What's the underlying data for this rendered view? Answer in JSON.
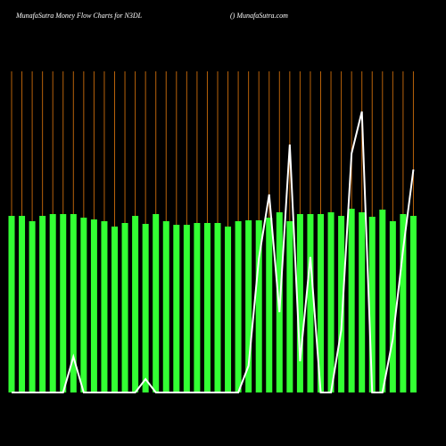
{
  "chart_data": {
    "type": "bar",
    "title": "MunafaSutra  Money Flow  Charts for N3DL",
    "subtitle": "() MunafaSutra.com",
    "categories": [
      null,
      null,
      null,
      null,
      null,
      null,
      null,
      null,
      null,
      null,
      null,
      null,
      null,
      null,
      null,
      null,
      null,
      null,
      null,
      null,
      null,
      null,
      null,
      null,
      null,
      null,
      null,
      null,
      null,
      null,
      null,
      null,
      null,
      null,
      null,
      null,
      null,
      null,
      null,
      null
    ],
    "series": [
      {
        "type": "bar",
        "color": "#33ff33",
        "values": [
          198,
          198,
          192,
          198,
          200,
          200,
          200,
          196,
          194,
          192,
          186,
          190,
          198,
          189,
          200,
          192,
          188,
          188,
          190,
          190,
          190,
          186,
          192,
          193,
          193,
          196,
          202,
          192,
          200,
          200,
          200,
          202,
          198,
          206,
          202,
          197,
          205,
          192,
          200,
          198
        ]
      },
      {
        "type": "line",
        "color": "#ffffff",
        "values": [
          0,
          0,
          0,
          0,
          0,
          0,
          40,
          0,
          0,
          0,
          0,
          0,
          0,
          15,
          0,
          0,
          0,
          0,
          0,
          0,
          0,
          0,
          0,
          30,
          150,
          222,
          90,
          278,
          35,
          152,
          0,
          0,
          70,
          268,
          315,
          0,
          0,
          60,
          160,
          250
        ]
      }
    ]
  }
}
